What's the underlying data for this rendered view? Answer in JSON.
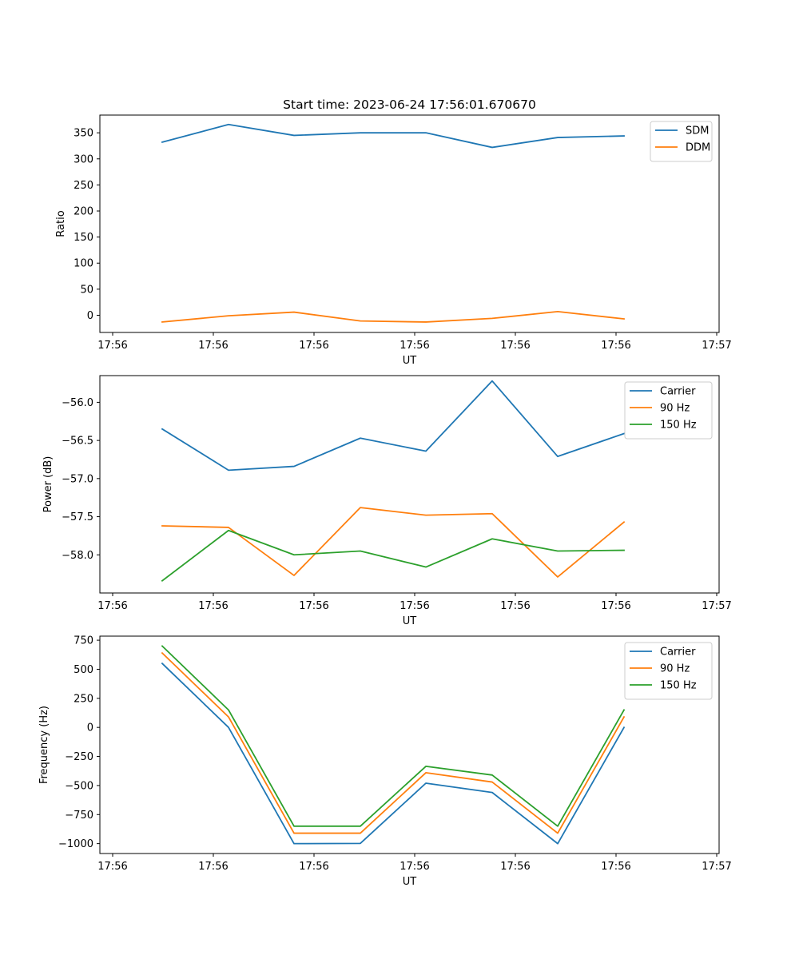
{
  "chart_data": [
    {
      "type": "line",
      "title": "Start time: 2023-06-24 17:56:01.670670",
      "xlabel": "UT",
      "ylabel": "Ratio",
      "x_tick_labels": [
        "17:56",
        "17:56",
        "17:56",
        "17:56",
        "17:56",
        "17:56",
        "17:57"
      ],
      "ylim": [
        -33,
        384
      ],
      "yticks": [
        0,
        50,
        100,
        150,
        200,
        250,
        300,
        350
      ],
      "legend_position": "upper right",
      "grid": false,
      "series": [
        {
          "name": "SDM",
          "color": "#1f77b4",
          "values": [
            332,
            366,
            345,
            350,
            350,
            322,
            341,
            344
          ]
        },
        {
          "name": "DDM",
          "color": "#ff7f0e",
          "values": [
            -13,
            -1,
            6,
            -11,
            -13,
            -6,
            7,
            -7
          ]
        }
      ]
    },
    {
      "type": "line",
      "title": "",
      "xlabel": "UT",
      "ylabel": "Power (dB)",
      "x_tick_labels": [
        "17:56",
        "17:56",
        "17:56",
        "17:56",
        "17:56",
        "17:56",
        "17:57"
      ],
      "ylim": [
        -58.5,
        -55.65
      ],
      "yticks": [
        -58.0,
        -57.5,
        -57.0,
        -56.5,
        -56.0
      ],
      "ytick_labels": [
        "−58.0",
        "−57.5",
        "−57.0",
        "−56.5",
        "−56.0"
      ],
      "legend_position": "upper right",
      "grid": false,
      "series": [
        {
          "name": "Carrier",
          "color": "#1f77b4",
          "values": [
            -56.35,
            -56.89,
            -56.84,
            -56.47,
            -56.64,
            -55.72,
            -56.71,
            -56.41
          ]
        },
        {
          "name": "90 Hz",
          "color": "#ff7f0e",
          "values": [
            -57.62,
            -57.64,
            -58.27,
            -57.38,
            -57.48,
            -57.46,
            -58.29,
            -57.57
          ]
        },
        {
          "name": "150 Hz",
          "color": "#2ca02c",
          "values": [
            -58.34,
            -57.68,
            -58.0,
            -57.95,
            -58.16,
            -57.79,
            -57.95,
            -57.94
          ]
        }
      ]
    },
    {
      "type": "line",
      "title": "",
      "xlabel": "UT",
      "ylabel": "Frequency (Hz)",
      "x_tick_labels": [
        "17:56",
        "17:56",
        "17:56",
        "17:56",
        "17:56",
        "17:56",
        "17:57"
      ],
      "ylim": [
        -1085,
        785
      ],
      "yticks": [
        -1000,
        -750,
        -500,
        -250,
        0,
        250,
        500,
        750
      ],
      "ytick_labels": [
        "−1000",
        "−750",
        "−500",
        "−250",
        "0",
        "250",
        "500",
        "750"
      ],
      "legend_position": "upper right",
      "grid": false,
      "series": [
        {
          "name": "Carrier",
          "color": "#1f77b4",
          "values": [
            550,
            0,
            -1000,
            -998,
            -480,
            -560,
            -1000,
            0
          ]
        },
        {
          "name": "90 Hz",
          "color": "#ff7f0e",
          "values": [
            640,
            90,
            -910,
            -910,
            -390,
            -470,
            -910,
            90
          ]
        },
        {
          "name": "150 Hz",
          "color": "#2ca02c",
          "values": [
            700,
            150,
            -850,
            -850,
            -335,
            -410,
            -850,
            150
          ]
        }
      ]
    }
  ]
}
